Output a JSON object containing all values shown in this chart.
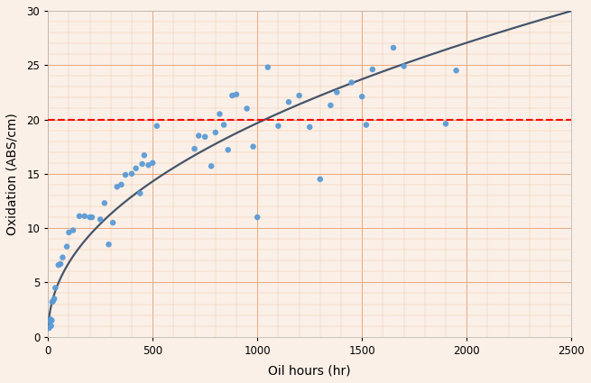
{
  "scatter_x": [
    5,
    8,
    12,
    15,
    18,
    20,
    25,
    30,
    35,
    50,
    60,
    70,
    90,
    100,
    120,
    150,
    175,
    200,
    210,
    250,
    270,
    290,
    310,
    330,
    350,
    370,
    400,
    420,
    440,
    450,
    460,
    480,
    500,
    520,
    700,
    720,
    750,
    780,
    800,
    820,
    840,
    860,
    880,
    900,
    950,
    980,
    1000,
    1050,
    1100,
    1150,
    1200,
    1250,
    1300,
    1350,
    1380,
    1450,
    1500,
    1520,
    1550,
    1650,
    1700,
    1900,
    1950
  ],
  "scatter_y": [
    0.8,
    1.4,
    1.6,
    1.0,
    1.5,
    3.2,
    3.3,
    3.5,
    4.5,
    6.6,
    6.7,
    7.3,
    8.3,
    9.6,
    9.8,
    11.1,
    11.1,
    11.0,
    11.0,
    10.8,
    12.3,
    8.5,
    10.5,
    13.8,
    14.0,
    14.9,
    15.0,
    15.5,
    13.2,
    15.9,
    16.7,
    15.8,
    16.0,
    19.4,
    17.3,
    18.5,
    18.4,
    15.7,
    18.8,
    20.5,
    19.5,
    17.2,
    22.2,
    22.3,
    21.0,
    17.5,
    11.0,
    24.8,
    19.4,
    21.6,
    22.2,
    19.3,
    14.5,
    21.3,
    22.5,
    23.4,
    22.1,
    19.5,
    24.6,
    26.6,
    24.9,
    19.6,
    24.5
  ],
  "scatter_color": "#5B9BD5",
  "scatter_size": 22,
  "fit_color": "#44546A",
  "fit_a": 0.82,
  "fit_b": 0.46,
  "dashed_y": 20,
  "dashed_color": "#FF0000",
  "dashed_linewidth": 1.5,
  "xlabel": "Oil hours (hr)",
  "ylabel": "Oxidation (ABS/cm)",
  "xlim": [
    0,
    2500
  ],
  "ylim": [
    0,
    30
  ],
  "xticks": [
    0,
    500,
    1000,
    1500,
    2000,
    2500
  ],
  "yticks": [
    0,
    5,
    10,
    15,
    20,
    25,
    30
  ],
  "bg_color": "#FAF0E8",
  "grid_major_color": "#E8A87C",
  "grid_minor_color": "#F2C9A8",
  "axis_label_fontsize": 10,
  "tick_fontsize": 8.5
}
